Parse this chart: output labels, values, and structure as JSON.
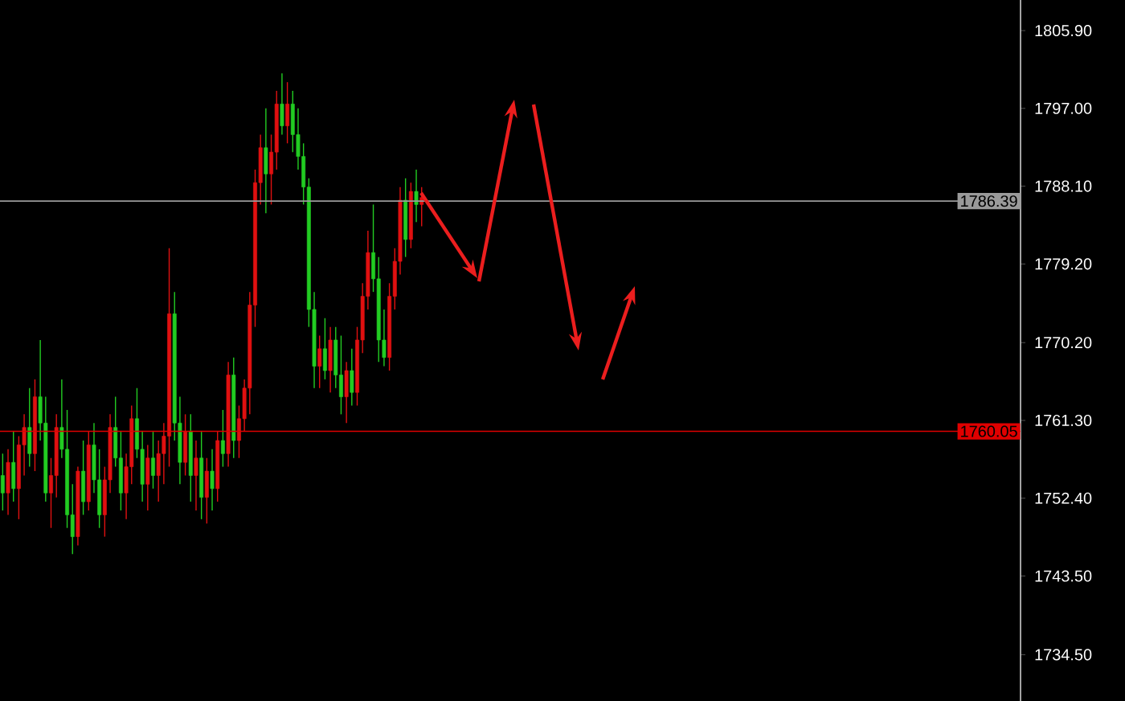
{
  "chart_data": {
    "type": "candlestick",
    "categories": [
      null,
      null,
      null,
      null,
      null,
      null,
      null,
      null,
      null,
      null,
      null,
      null,
      null,
      null,
      null,
      null,
      null,
      null,
      null,
      null,
      null,
      null,
      null,
      null,
      null,
      null,
      null,
      null,
      null,
      null,
      null,
      null,
      null,
      null,
      null,
      null,
      null,
      null,
      null,
      null,
      null,
      null,
      null,
      null,
      null,
      null,
      null,
      null,
      null,
      null,
      null,
      null,
      null,
      null,
      null,
      null,
      null,
      null,
      null,
      null,
      null,
      null,
      null,
      null,
      null,
      null,
      null,
      null,
      null,
      null,
      null,
      null,
      null,
      null,
      null,
      null,
      null,
      null,
      null,
      null,
      null,
      null,
      null,
      null,
      null,
      null,
      null,
      null,
      null,
      null,
      null,
      null,
      null,
      null,
      null,
      null,
      null,
      null,
      null,
      null,
      null,
      null,
      null,
      null,
      null,
      null,
      null,
      null,
      null,
      null,
      null,
      null,
      null,
      null,
      null,
      null,
      null,
      null,
      null,
      null,
      null,
      null,
      null,
      null,
      null,
      null,
      null,
      null,
      null,
      null,
      null,
      null,
      null,
      null,
      null,
      null,
      null,
      null,
      null,
      null,
      null,
      null,
      null,
      null,
      null,
      null,
      null,
      null,
      null,
      null,
      null,
      null,
      null,
      null,
      null,
      null,
      null,
      null,
      null,
      null,
      null,
      null,
      null,
      null,
      null,
      null,
      null,
      null,
      null,
      null,
      null,
      null,
      null,
      null,
      null,
      null,
      null,
      null,
      null,
      null,
      null,
      null,
      null,
      null,
      null,
      null,
      null,
      null,
      null,
      null
    ],
    "ohlc": [
      [
        1755,
        1757.5,
        1751,
        1753
      ],
      [
        1753,
        1758,
        1750.5,
        1756.5
      ],
      [
        1756.5,
        1760,
        1752,
        1753.5
      ],
      [
        1753.5,
        1759.5,
        1750,
        1758.5
      ],
      [
        1758.5,
        1762,
        1755,
        1760.5
      ],
      [
        1760.5,
        1765,
        1756,
        1757.5
      ],
      [
        1757.5,
        1766,
        1755.5,
        1764
      ],
      [
        1764,
        1770.5,
        1759,
        1761
      ],
      [
        1761,
        1764,
        1752,
        1753
      ],
      [
        1753,
        1757,
        1749,
        1755
      ],
      [
        1755,
        1762,
        1752.5,
        1760.5
      ],
      [
        1760.5,
        1766,
        1757,
        1758
      ],
      [
        1758,
        1762.5,
        1749,
        1750.5
      ],
      [
        1750.5,
        1754,
        1746,
        1748
      ],
      [
        1748,
        1756,
        1747,
        1755.5
      ],
      [
        1755.5,
        1759,
        1750.5,
        1752
      ],
      [
        1752,
        1760,
        1751,
        1758.5
      ],
      [
        1758.5,
        1761,
        1753,
        1754.5
      ],
      [
        1754.5,
        1758,
        1749,
        1750.5
      ],
      [
        1750.5,
        1756,
        1748,
        1754.5
      ],
      [
        1754.5,
        1762,
        1753,
        1760.5
      ],
      [
        1760.5,
        1764,
        1756,
        1757
      ],
      [
        1757,
        1760,
        1751,
        1753
      ],
      [
        1753,
        1757.5,
        1750,
        1756
      ],
      [
        1756,
        1763,
        1754,
        1761.5
      ],
      [
        1761.5,
        1765,
        1757,
        1758
      ],
      [
        1758,
        1760,
        1752,
        1754
      ],
      [
        1754,
        1758.5,
        1751,
        1757
      ],
      [
        1757,
        1760,
        1753.5,
        1755
      ],
      [
        1755,
        1759,
        1752,
        1757.5
      ],
      [
        1757.5,
        1761,
        1754,
        1759.5
      ],
      [
        1759.5,
        1781,
        1756,
        1773.5
      ],
      [
        1773.5,
        1776,
        1759,
        1761
      ],
      [
        1761,
        1764,
        1754,
        1756.5
      ],
      [
        1756.5,
        1762,
        1755,
        1760
      ],
      [
        1760,
        1762,
        1752,
        1755
      ],
      [
        1755,
        1759,
        1751,
        1757
      ],
      [
        1757,
        1760,
        1750,
        1752.5
      ],
      [
        1752.5,
        1757,
        1749.5,
        1755.5
      ],
      [
        1755.5,
        1758,
        1751,
        1753.5
      ],
      [
        1753.5,
        1760,
        1752,
        1759
      ],
      [
        1759,
        1762.5,
        1756,
        1757.5
      ],
      [
        1757.5,
        1768,
        1756,
        1766.5
      ],
      [
        1766.5,
        1768.5,
        1757,
        1759
      ],
      [
        1759,
        1763,
        1757,
        1761.5
      ],
      [
        1761.5,
        1766,
        1760,
        1765
      ],
      [
        1765,
        1776,
        1762,
        1774.5
      ],
      [
        1774.5,
        1790,
        1772,
        1788.5
      ],
      [
        1788.5,
        1794,
        1786,
        1792.5
      ],
      [
        1792.5,
        1797,
        1785,
        1789.5
      ],
      [
        1789.5,
        1794,
        1786,
        1792
      ],
      [
        1792,
        1799,
        1790,
        1797.5
      ],
      [
        1797.5,
        1801,
        1794,
        1795
      ],
      [
        1795,
        1800,
        1793,
        1797.5
      ],
      [
        1797.5,
        1799,
        1792,
        1794
      ],
      [
        1794,
        1797,
        1790,
        1791.5
      ],
      [
        1791.5,
        1793,
        1786,
        1788
      ],
      [
        1788,
        1789,
        1772,
        1774
      ],
      [
        1774,
        1776,
        1765,
        1767.5
      ],
      [
        1767.5,
        1771,
        1765,
        1769.5
      ],
      [
        1769.5,
        1773,
        1766,
        1767
      ],
      [
        1767,
        1772,
        1764.5,
        1770.5
      ],
      [
        1770.5,
        1772,
        1765,
        1766.5
      ],
      [
        1766.5,
        1771,
        1762,
        1764
      ],
      [
        1764,
        1768,
        1761,
        1767
      ],
      [
        1767,
        1769.5,
        1763,
        1764.5
      ],
      [
        1764.5,
        1772,
        1763,
        1770.5
      ],
      [
        1770.5,
        1777,
        1769,
        1775.5
      ],
      [
        1775.5,
        1783,
        1774,
        1780.5
      ],
      [
        1780.5,
        1786,
        1776,
        1777.5
      ],
      [
        1777.5,
        1780,
        1768,
        1770.5
      ],
      [
        1770.5,
        1774,
        1767.5,
        1768.5
      ],
      [
        1768.5,
        1777,
        1767,
        1775.5
      ],
      [
        1775.5,
        1781,
        1774,
        1779.5
      ],
      [
        1779.5,
        1788,
        1778,
        1786.5
      ],
      [
        1786.5,
        1789,
        1780,
        1782
      ],
      [
        1782,
        1788.5,
        1781,
        1787.5
      ],
      [
        1787.5,
        1790,
        1784,
        1786
      ],
      [
        1786,
        1788,
        1783.5,
        1786.8
      ],
      null,
      null,
      null,
      null,
      null,
      null,
      null,
      null,
      null,
      null,
      null,
      null,
      null,
      null,
      null,
      null,
      null,
      null,
      null,
      null,
      null,
      null,
      null,
      null,
      null,
      null,
      null,
      null,
      null,
      null,
      null,
      null,
      null,
      null,
      null,
      null,
      null,
      null,
      null,
      null,
      null,
      null,
      null,
      null,
      null,
      null,
      null,
      null,
      null,
      null,
      null,
      null,
      null,
      null,
      null,
      null,
      null,
      null,
      null,
      null,
      null,
      null,
      null,
      null,
      null,
      null,
      null,
      null,
      null,
      null,
      null,
      null,
      null,
      null,
      null,
      null,
      null,
      null,
      null,
      null,
      null,
      null,
      null,
      null,
      null,
      null,
      null,
      null,
      null,
      null,
      null,
      null,
      null,
      null,
      null,
      null,
      null,
      null,
      null,
      null,
      null,
      null,
      null,
      null,
      null,
      null,
      null,
      null,
      null,
      null,
      null
    ],
    "colors": [
      "#22cc22",
      "#e01010",
      "#22cc22",
      "#e01010",
      "#e01010",
      "#22cc22",
      "#e01010",
      "#22cc22",
      "#22cc22",
      "#e01010",
      "#e01010",
      "#22cc22",
      "#22cc22",
      "#22cc22",
      "#e01010",
      "#22cc22",
      "#e01010",
      "#22cc22",
      "#22cc22",
      "#e01010",
      "#e01010",
      "#22cc22",
      "#22cc22",
      "#e01010",
      "#e01010",
      "#22cc22",
      "#22cc22",
      "#e01010",
      "#22cc22",
      "#e01010",
      "#e01010",
      "#e01010",
      "#22cc22",
      "#22cc22",
      "#e01010",
      "#22cc22",
      "#e01010",
      "#22cc22",
      "#e01010",
      "#22cc22",
      "#e01010",
      "#22cc22",
      "#e01010",
      "#22cc22",
      "#e01010",
      "#e01010",
      "#e01010",
      "#e01010",
      "#e01010",
      "#22cc22",
      "#e01010",
      "#e01010",
      "#22cc22",
      "#e01010",
      "#22cc22",
      "#22cc22",
      "#22cc22",
      "#22cc22",
      "#22cc22",
      "#e01010",
      "#22cc22",
      "#e01010",
      "#22cc22",
      "#22cc22",
      "#e01010",
      "#22cc22",
      "#e01010",
      "#e01010",
      "#e01010",
      "#22cc22",
      "#22cc22",
      "#22cc22",
      "#e01010",
      "#e01010",
      "#e01010",
      "#22cc22",
      "#e01010",
      "#22cc22",
      "#e01010",
      null,
      null,
      null,
      null,
      null,
      null,
      null,
      null,
      null,
      null,
      null,
      null,
      null,
      null,
      null,
      null,
      null,
      null,
      null,
      null,
      null,
      null,
      null,
      null,
      null,
      null,
      null,
      null,
      null,
      null,
      null,
      null,
      null,
      null,
      null,
      null,
      null,
      null,
      null,
      null,
      null,
      null,
      null,
      null,
      null,
      null,
      null,
      null,
      null,
      null,
      null,
      null,
      null,
      null,
      null,
      null,
      null,
      null,
      null,
      null,
      null,
      null,
      null,
      null,
      null,
      null,
      null,
      null,
      null,
      null,
      null,
      null,
      null,
      null,
      null,
      null,
      null,
      null,
      null,
      null,
      null,
      null,
      null,
      null,
      null,
      null,
      null,
      null,
      null,
      null,
      null,
      null,
      null,
      null,
      null,
      null,
      null,
      null,
      null,
      null,
      null,
      null,
      null,
      null,
      null,
      null,
      null,
      null,
      null,
      null,
      null
    ],
    "ylim": [
      1729.2,
      1809.4
    ],
    "yticks": [
      {
        "value": 1805.9,
        "label": "1805.90"
      },
      {
        "value": 1797.0,
        "label": "1797.00"
      },
      {
        "value": 1788.1,
        "label": "1788.10"
      },
      {
        "value": 1779.2,
        "label": "1779.20"
      },
      {
        "value": 1770.2,
        "label": "1770.20"
      },
      {
        "value": 1761.3,
        "label": "1761.30"
      },
      {
        "value": 1752.4,
        "label": "1752.40"
      },
      {
        "value": 1743.5,
        "label": "1743.50"
      },
      {
        "value": 1734.5,
        "label": "1734.50"
      }
    ],
    "ref_lines": [
      {
        "axis": "y",
        "value": 1786.39,
        "label": "1786.39",
        "color": "#9a9a9a"
      },
      {
        "axis": "y",
        "value": 1760.05,
        "label": "1760.05",
        "color": "#e00000"
      }
    ],
    "grid": false
  }
}
